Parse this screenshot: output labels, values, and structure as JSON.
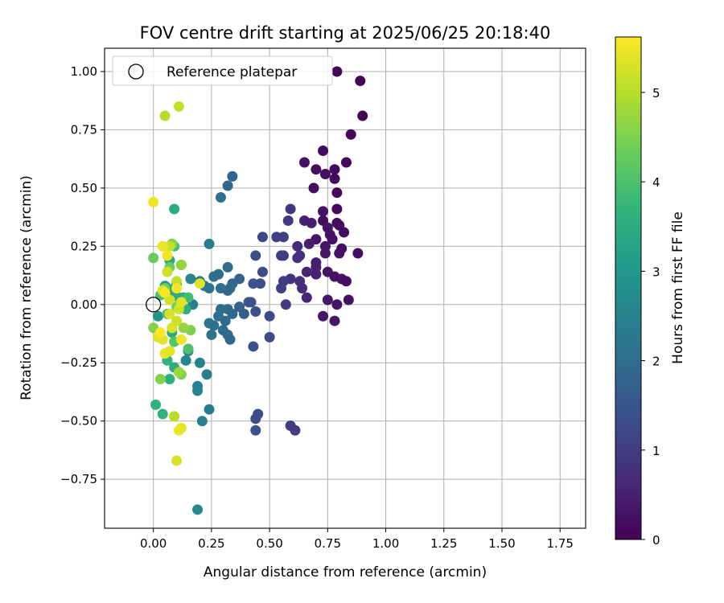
{
  "chart_data": {
    "type": "scatter",
    "title": "FOV centre drift starting at 2025/06/25 20:18:40",
    "xlabel": "Angular distance from reference (arcmin)",
    "ylabel": "Rotation from reference (arcmin)",
    "xlim": [
      -0.21,
      1.86
    ],
    "ylim": [
      -0.96,
      1.1
    ],
    "grid": true,
    "xticks": [
      0.0,
      0.25,
      0.5,
      0.75,
      1.0,
      1.25,
      1.5,
      1.75
    ],
    "xtick_labels": [
      "0.00",
      "0.25",
      "0.50",
      "0.75",
      "1.00",
      "1.25",
      "1.50",
      "1.75"
    ],
    "yticks": [
      1.0,
      0.75,
      0.5,
      0.25,
      0.0,
      -0.25,
      -0.5,
      -0.75
    ],
    "ytick_labels": [
      "1.00",
      "0.75",
      "0.50",
      "0.25",
      "0.00",
      "−0.25",
      "−0.50",
      "−0.75"
    ],
    "legend": {
      "label": "Reference platepar",
      "placement": "upper-left"
    },
    "reference_point": {
      "x": 0.0,
      "y": 0.0
    },
    "colorbar": {
      "label": "Hours from first FF file",
      "colormap": "viridis",
      "range": [
        0,
        5.62
      ],
      "ticks": [
        0,
        1,
        2,
        3,
        4,
        5
      ],
      "tick_labels": [
        "0",
        "1",
        "2",
        "3",
        "4",
        "5"
      ]
    },
    "colormap_stops": [
      "#440154",
      "#482878",
      "#3e4989",
      "#31688e",
      "#26828e",
      "#1f9e89",
      "#35b779",
      "#6ece58",
      "#b5de2b",
      "#fde725"
    ],
    "points": [
      [
        0.79,
        1.0,
        0.05
      ],
      [
        0.89,
        0.96,
        0.05
      ],
      [
        0.9,
        0.81,
        0.05
      ],
      [
        0.85,
        0.73,
        0.1
      ],
      [
        0.73,
        0.66,
        0.15
      ],
      [
        0.83,
        0.61,
        0.1
      ],
      [
        0.78,
        0.58,
        0.15
      ],
      [
        0.74,
        0.56,
        0.2
      ],
      [
        0.7,
        0.58,
        0.2
      ],
      [
        0.65,
        0.61,
        0.25
      ],
      [
        0.78,
        0.54,
        0.15
      ],
      [
        0.69,
        0.5,
        0.2
      ],
      [
        0.79,
        0.48,
        0.1
      ],
      [
        0.79,
        0.41,
        0.15
      ],
      [
        0.73,
        0.4,
        0.25
      ],
      [
        0.73,
        0.36,
        0.2
      ],
      [
        0.79,
        0.35,
        0.2
      ],
      [
        0.75,
        0.33,
        0.3
      ],
      [
        0.76,
        0.3,
        0.25
      ],
      [
        0.8,
        0.34,
        0.2
      ],
      [
        0.82,
        0.31,
        0.15
      ],
      [
        0.7,
        0.28,
        0.3
      ],
      [
        0.77,
        0.28,
        0.25
      ],
      [
        0.74,
        0.25,
        0.3
      ],
      [
        0.81,
        0.24,
        0.2
      ],
      [
        0.74,
        0.22,
        0.35
      ],
      [
        0.8,
        0.22,
        0.25
      ],
      [
        0.88,
        0.22,
        0.2
      ],
      [
        0.67,
        0.26,
        0.45
      ],
      [
        0.65,
        0.36,
        0.5
      ],
      [
        0.59,
        0.41,
        0.9
      ],
      [
        0.58,
        0.36,
        0.95
      ],
      [
        0.68,
        0.35,
        0.45
      ],
      [
        0.62,
        0.25,
        0.65
      ],
      [
        0.63,
        0.21,
        0.75
      ],
      [
        0.62,
        0.2,
        0.8
      ],
      [
        0.56,
        0.21,
        0.9
      ],
      [
        0.7,
        0.18,
        0.45
      ],
      [
        0.7,
        0.16,
        0.5
      ],
      [
        0.75,
        0.14,
        0.3
      ],
      [
        0.66,
        0.14,
        0.55
      ],
      [
        0.7,
        0.13,
        0.5
      ],
      [
        0.78,
        0.12,
        0.25
      ],
      [
        0.81,
        0.11,
        0.25
      ],
      [
        0.83,
        0.1,
        0.2
      ],
      [
        0.63,
        0.1,
        0.75
      ],
      [
        0.59,
        0.11,
        0.85
      ],
      [
        0.56,
        0.1,
        1.0
      ],
      [
        0.55,
        0.07,
        1.05
      ],
      [
        0.64,
        0.07,
        0.7
      ],
      [
        0.66,
        0.03,
        0.6
      ],
      [
        0.75,
        0.02,
        0.35
      ],
      [
        0.79,
        0.0,
        0.3
      ],
      [
        0.84,
        0.02,
        0.25
      ],
      [
        0.57,
        0.0,
        0.95
      ],
      [
        0.73,
        -0.05,
        0.35
      ],
      [
        0.78,
        -0.07,
        0.3
      ],
      [
        0.53,
        0.29,
        1.1
      ],
      [
        0.56,
        0.29,
        1.05
      ],
      [
        0.47,
        0.29,
        1.2
      ],
      [
        0.55,
        0.21,
        1.05
      ],
      [
        0.44,
        0.21,
        1.35
      ],
      [
        0.47,
        0.14,
        1.3
      ],
      [
        0.46,
        0.09,
        1.35
      ],
      [
        0.43,
        0.09,
        1.45
      ],
      [
        0.41,
        0.01,
        1.5
      ],
      [
        0.42,
        0.01,
        1.5
      ],
      [
        0.44,
        -0.03,
        1.45
      ],
      [
        0.5,
        -0.05,
        1.25
      ],
      [
        0.5,
        -0.14,
        1.3
      ],
      [
        0.43,
        -0.18,
        1.45
      ],
      [
        0.45,
        -0.47,
        1.3
      ],
      [
        0.44,
        -0.49,
        1.35
      ],
      [
        0.44,
        -0.54,
        1.4
      ],
      [
        0.59,
        -0.52,
        1.05
      ],
      [
        0.61,
        -0.54,
        1.0
      ],
      [
        0.34,
        0.55,
        1.85
      ],
      [
        0.32,
        0.51,
        1.9
      ],
      [
        0.29,
        0.46,
        2.05
      ],
      [
        0.37,
        0.11,
        1.75
      ],
      [
        0.34,
        0.09,
        1.85
      ],
      [
        0.32,
        0.06,
        1.9
      ],
      [
        0.28,
        0.13,
        2.0
      ],
      [
        0.32,
        0.16,
        1.95
      ],
      [
        0.26,
        0.12,
        2.05
      ],
      [
        0.29,
        0.07,
        2.0
      ],
      [
        0.33,
        0.07,
        1.9
      ],
      [
        0.37,
        -0.01,
        1.75
      ],
      [
        0.39,
        -0.04,
        1.7
      ],
      [
        0.34,
        -0.04,
        1.85
      ],
      [
        0.32,
        -0.02,
        1.9
      ],
      [
        0.29,
        -0.02,
        2.0
      ],
      [
        0.28,
        -0.05,
        2.05
      ],
      [
        0.31,
        -0.07,
        1.95
      ],
      [
        0.24,
        -0.08,
        2.15
      ],
      [
        0.26,
        -0.09,
        2.1
      ],
      [
        0.3,
        -0.11,
        2.0
      ],
      [
        0.32,
        -0.13,
        1.95
      ],
      [
        0.33,
        -0.15,
        1.9
      ],
      [
        0.25,
        -0.13,
        2.15
      ],
      [
        0.22,
        0.08,
        2.3
      ],
      [
        0.24,
        0.07,
        2.2
      ],
      [
        0.24,
        0.26,
        2.35
      ],
      [
        0.16,
        0.11,
        2.55
      ],
      [
        0.2,
        0.1,
        2.4
      ],
      [
        0.17,
        0.0,
        2.45
      ],
      [
        0.15,
        -0.2,
        2.6
      ],
      [
        0.14,
        -0.24,
        2.6
      ],
      [
        0.2,
        -0.25,
        2.5
      ],
      [
        0.23,
        -0.3,
        2.4
      ],
      [
        0.19,
        -0.35,
        2.5
      ],
      [
        0.19,
        -0.37,
        2.5
      ],
      [
        0.24,
        -0.45,
        2.35
      ],
      [
        0.21,
        -0.5,
        2.4
      ],
      [
        0.19,
        -0.88,
        2.65
      ],
      [
        0.02,
        -0.05,
        2.9
      ],
      [
        0.05,
        0.08,
        2.95
      ],
      [
        0.06,
        0.07,
        3.0
      ],
      [
        0.09,
        0.41,
        3.45
      ],
      [
        0.08,
        0.26,
        3.5
      ],
      [
        0.1,
        0.09,
        3.3
      ],
      [
        0.07,
        0.19,
        3.35
      ],
      [
        0.09,
        0.05,
        3.4
      ],
      [
        0.13,
        0.03,
        3.45
      ],
      [
        0.11,
        0.03,
        3.5
      ],
      [
        0.14,
        -0.02,
        3.55
      ],
      [
        0.08,
        -0.12,
        3.5
      ],
      [
        0.06,
        -0.24,
        3.6
      ],
      [
        0.09,
        -0.27,
        3.5
      ],
      [
        0.07,
        -0.32,
        3.55
      ],
      [
        0.01,
        -0.43,
        3.6
      ],
      [
        0.04,
        -0.47,
        3.65
      ],
      [
        0.12,
        0.17,
        3.8
      ],
      [
        0.09,
        0.25,
        3.9
      ],
      [
        0.15,
        0.03,
        3.9
      ],
      [
        0.03,
        0.04,
        3.95
      ],
      [
        0.06,
        -0.04,
        4.05
      ],
      [
        0.09,
        -0.16,
        4.1
      ],
      [
        0.15,
        -0.19,
        4.0
      ],
      [
        0.0,
        0.2,
        4.3
      ],
      [
        0.07,
        0.16,
        4.3
      ],
      [
        0.05,
        0.07,
        4.35
      ],
      [
        0.1,
        -0.01,
        4.4
      ],
      [
        0.12,
        -0.3,
        4.5
      ],
      [
        0.03,
        -0.32,
        4.55
      ],
      [
        0.0,
        -0.1,
        4.55
      ],
      [
        0.16,
        -0.11,
        4.5
      ],
      [
        0.08,
        0.26,
        4.6
      ],
      [
        0.12,
        0.17,
        4.7
      ],
      [
        0.04,
        0.25,
        4.75
      ],
      [
        0.13,
        -0.1,
        4.7
      ],
      [
        0.11,
        -0.29,
        4.75
      ],
      [
        0.05,
        0.81,
        5.0
      ],
      [
        0.11,
        0.85,
        5.1
      ],
      [
        0.07,
        0.25,
        5.15
      ],
      [
        0.1,
        0.1,
        5.1
      ],
      [
        0.06,
        0.14,
        5.2
      ],
      [
        0.04,
        0.06,
        5.3
      ],
      [
        0.07,
        0.02,
        5.25
      ],
      [
        0.11,
        -0.02,
        5.2
      ],
      [
        0.1,
        -0.07,
        5.2
      ],
      [
        0.07,
        -0.04,
        5.3
      ],
      [
        0.08,
        -0.1,
        5.3
      ],
      [
        0.12,
        0.01,
        5.35
      ],
      [
        0.02,
        -0.14,
        5.35
      ],
      [
        0.04,
        -0.15,
        5.4
      ],
      [
        0.05,
        -0.21,
        5.45
      ],
      [
        0.07,
        -0.2,
        5.4
      ],
      [
        0.09,
        -0.48,
        5.0
      ],
      [
        0.12,
        -0.53,
        5.4
      ],
      [
        0.11,
        -0.54,
        5.45
      ],
      [
        0.1,
        -0.67,
        5.3
      ],
      [
        0.0,
        0.44,
        5.5
      ],
      [
        0.04,
        0.25,
        5.45
      ],
      [
        0.06,
        0.21,
        5.5
      ],
      [
        0.1,
        0.07,
        5.55
      ],
      [
        0.12,
        -0.15,
        5.5
      ],
      [
        0.2,
        0.09,
        5.35
      ],
      [
        0.05,
        0.05,
        5.55
      ],
      [
        0.03,
        -0.12,
        5.6
      ]
    ]
  }
}
